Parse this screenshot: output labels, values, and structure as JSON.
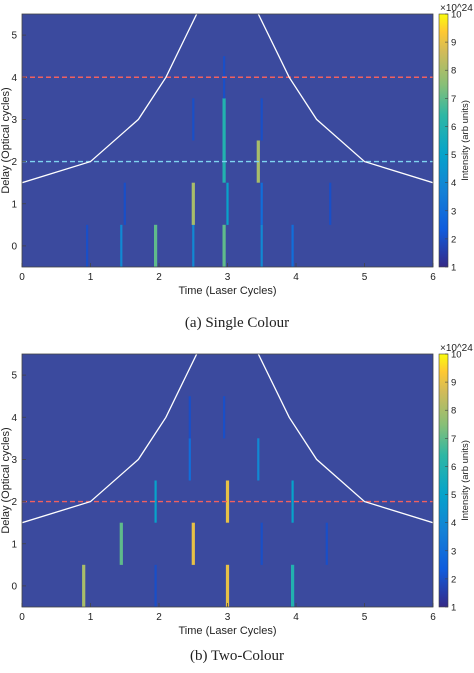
{
  "figure": {
    "panels": [
      {
        "caption": "(a) Single Colour"
      },
      {
        "caption": "(b) Two-Colour"
      }
    ]
  },
  "chart_data": [
    {
      "type": "heatmap",
      "xlabel": "Time (Laser Cycles)",
      "ylabel": "Delay (Optical cycles)",
      "xlim": [
        0,
        6
      ],
      "ylim": [
        -0.5,
        5.5
      ],
      "xticks": [
        "0",
        "1",
        "2",
        "3",
        "4",
        "5",
        "6"
      ],
      "yticks": [
        "0",
        "1",
        "2",
        "3",
        "4",
        "5"
      ],
      "colorbar": {
        "label": "Intensity (arb units)",
        "ticks": [
          "1",
          "2",
          "3",
          "4",
          "5",
          "6",
          "7",
          "8",
          "9",
          "10"
        ],
        "range": [
          1,
          10
        ],
        "exponent": "×10^24"
      },
      "background_color": "#3b4a9e",
      "hlines": [
        {
          "y": 4.0,
          "color": "#f06060"
        },
        {
          "y": 2.0,
          "color": "#7fd4f0"
        }
      ],
      "envelope": [
        [
          0,
          1.5
        ],
        [
          1.0,
          2.0
        ],
        [
          1.7,
          3.0
        ],
        [
          2.1,
          4.0
        ],
        [
          2.4,
          5.0
        ],
        [
          2.7,
          6.0
        ],
        [
          3.3,
          6.0
        ],
        [
          3.9,
          4.0
        ],
        [
          4.3,
          3.0
        ],
        [
          5.0,
          2.0
        ],
        [
          6,
          1.5
        ]
      ],
      "streaks": [
        {
          "x": 0.95,
          "y0": -0.5,
          "y1": 0.5,
          "v": 2
        },
        {
          "x": 1.45,
          "y0": -0.5,
          "y1": 0.5,
          "v": 4
        },
        {
          "x": 1.95,
          "y0": -0.5,
          "y1": 0.5,
          "v": 7
        },
        {
          "x": 2.5,
          "y0": -0.5,
          "y1": 0.5,
          "v": 4
        },
        {
          "x": 2.95,
          "y0": -0.5,
          "y1": 0.5,
          "v": 7
        },
        {
          "x": 3.5,
          "y0": -0.5,
          "y1": 0.5,
          "v": 4
        },
        {
          "x": 3.95,
          "y0": -0.5,
          "y1": 0.5,
          "v": 3
        },
        {
          "x": 1.5,
          "y0": 0.5,
          "y1": 1.5,
          "v": 2
        },
        {
          "x": 2.5,
          "y0": 0.5,
          "y1": 1.5,
          "v": 8
        },
        {
          "x": 3.0,
          "y0": 0.5,
          "y1": 1.5,
          "v": 5
        },
        {
          "x": 3.5,
          "y0": 0.5,
          "y1": 1.5,
          "v": 3
        },
        {
          "x": 4.5,
          "y0": 0.5,
          "y1": 1.5,
          "v": 2
        },
        {
          "x": 2.95,
          "y0": 1.5,
          "y1": 2.5,
          "v": 6
        },
        {
          "x": 3.45,
          "y0": 1.5,
          "y1": 2.5,
          "v": 8
        },
        {
          "x": 2.5,
          "y0": 2.5,
          "y1": 3.5,
          "v": 2
        },
        {
          "x": 2.95,
          "y0": 2.5,
          "y1": 3.5,
          "v": 6
        },
        {
          "x": 3.5,
          "y0": 2.5,
          "y1": 3.5,
          "v": 2
        },
        {
          "x": 2.95,
          "y0": 3.5,
          "y1": 4.5,
          "v": 2
        }
      ]
    },
    {
      "type": "heatmap",
      "xlabel": "Time (Laser Cycles)",
      "ylabel": "Delay (Optical cycles)",
      "xlim": [
        0,
        6
      ],
      "ylim": [
        -0.5,
        5.5
      ],
      "xticks": [
        "0",
        "1",
        "2",
        "3",
        "4",
        "5",
        "6"
      ],
      "yticks": [
        "0",
        "1",
        "2",
        "3",
        "4",
        "5"
      ],
      "colorbar": {
        "label": "Intensity (arb units)",
        "ticks": [
          "1",
          "2",
          "3",
          "4",
          "5",
          "6",
          "7",
          "8",
          "9",
          "10"
        ],
        "range": [
          1,
          10
        ],
        "exponent": "×10^24"
      },
      "background_color": "#3b4a9e",
      "hlines": [
        {
          "y": 2.0,
          "color": "#f06060"
        }
      ],
      "envelope": [
        [
          0,
          1.5
        ],
        [
          1.0,
          2.0
        ],
        [
          1.7,
          3.0
        ],
        [
          2.1,
          4.0
        ],
        [
          2.4,
          5.0
        ],
        [
          2.7,
          6.0
        ],
        [
          3.3,
          6.0
        ],
        [
          3.9,
          4.0
        ],
        [
          4.3,
          3.0
        ],
        [
          5.0,
          2.0
        ],
        [
          6,
          1.5
        ]
      ],
      "streaks": [
        {
          "x": 0.9,
          "y0": -0.5,
          "y1": 0.5,
          "v": 8
        },
        {
          "x": 1.95,
          "y0": -0.5,
          "y1": 0.5,
          "v": 2
        },
        {
          "x": 3.0,
          "y0": -0.5,
          "y1": 0.5,
          "v": 9
        },
        {
          "x": 3.95,
          "y0": -0.5,
          "y1": 0.5,
          "v": 6
        },
        {
          "x": 1.45,
          "y0": 0.5,
          "y1": 1.5,
          "v": 7
        },
        {
          "x": 2.5,
          "y0": 0.5,
          "y1": 1.5,
          "v": 9
        },
        {
          "x": 3.5,
          "y0": 0.5,
          "y1": 1.5,
          "v": 2
        },
        {
          "x": 4.45,
          "y0": 0.5,
          "y1": 1.5,
          "v": 2
        },
        {
          "x": 1.95,
          "y0": 1.5,
          "y1": 2.5,
          "v": 5
        },
        {
          "x": 3.0,
          "y0": 1.5,
          "y1": 2.5,
          "v": 9
        },
        {
          "x": 3.95,
          "y0": 1.5,
          "y1": 2.5,
          "v": 5
        },
        {
          "x": 2.45,
          "y0": 2.5,
          "y1": 3.5,
          "v": 3
        },
        {
          "x": 3.45,
          "y0": 2.5,
          "y1": 3.5,
          "v": 4
        },
        {
          "x": 2.45,
          "y0": 3.5,
          "y1": 4.5,
          "v": 2
        },
        {
          "x": 2.95,
          "y0": 3.5,
          "y1": 4.5,
          "v": 2
        }
      ]
    }
  ]
}
